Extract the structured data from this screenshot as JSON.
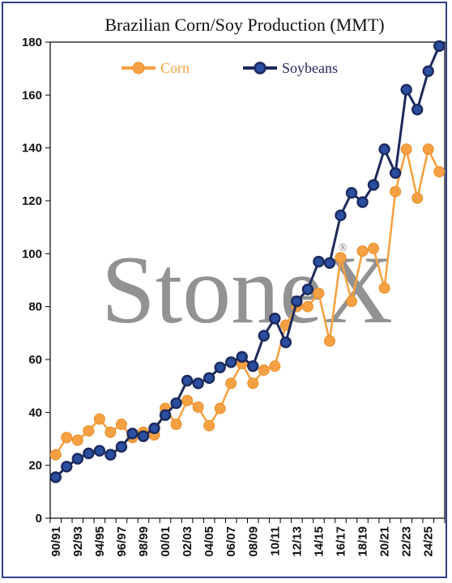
{
  "chart_data": {
    "type": "line",
    "title": "Brazilian Corn/Soy Production (MMT)",
    "watermark": "StoneX",
    "watermark_mark": "®",
    "ylim": [
      0,
      180
    ],
    "yticks": [
      0,
      20,
      40,
      60,
      80,
      100,
      120,
      140,
      160,
      180
    ],
    "categories": [
      "90/91",
      "91/92",
      "92/93",
      "93/94",
      "94/95",
      "95/96",
      "96/97",
      "97/98",
      "98/99",
      "99/00",
      "00/01",
      "01/02",
      "02/03",
      "03/04",
      "04/05",
      "05/06",
      "06/07",
      "07/08",
      "08/09",
      "09/10",
      "10/11",
      "11/12",
      "12/13",
      "13/14",
      "14/15",
      "15/16",
      "16/17",
      "17/18",
      "18/19",
      "19/20",
      "20/21",
      "21/22",
      "22/23",
      "23/24",
      "24/25",
      "25/26"
    ],
    "x_tick_labels": [
      "90/91",
      "92/93",
      "94/95",
      "96/97",
      "98/99",
      "00/01",
      "02/03",
      "04/05",
      "06/07",
      "08/09",
      "10/11",
      "12/13",
      "14/15",
      "16/17",
      "18/19",
      "20/21",
      "22/23",
      "24/25"
    ],
    "legend_position": "top",
    "series": [
      {
        "name": "Corn",
        "color": "#f5a143",
        "values": [
          24,
          30.5,
          29.5,
          33,
          37.5,
          32.5,
          35.5,
          30.5,
          32.5,
          31.5,
          41.5,
          35.5,
          44.5,
          42,
          35,
          41.5,
          51,
          58.5,
          51,
          56,
          57.5,
          73,
          80,
          80,
          85,
          67,
          98.5,
          82,
          101,
          102,
          87,
          123.5,
          139.5,
          121,
          139.5,
          131
        ]
      },
      {
        "name": "Soybeans",
        "color": "#1c2a5c",
        "values": [
          15.5,
          19.5,
          22.5,
          24.5,
          25.5,
          24,
          27,
          32,
          31,
          34,
          39,
          43.5,
          52,
          51,
          53,
          57,
          59,
          61,
          57.5,
          69,
          75.5,
          66.5,
          82,
          86.5,
          97,
          96.5,
          114.5,
          123,
          119.5,
          126,
          139.5,
          130.5,
          162,
          154.5,
          169,
          178.5
        ]
      }
    ]
  }
}
